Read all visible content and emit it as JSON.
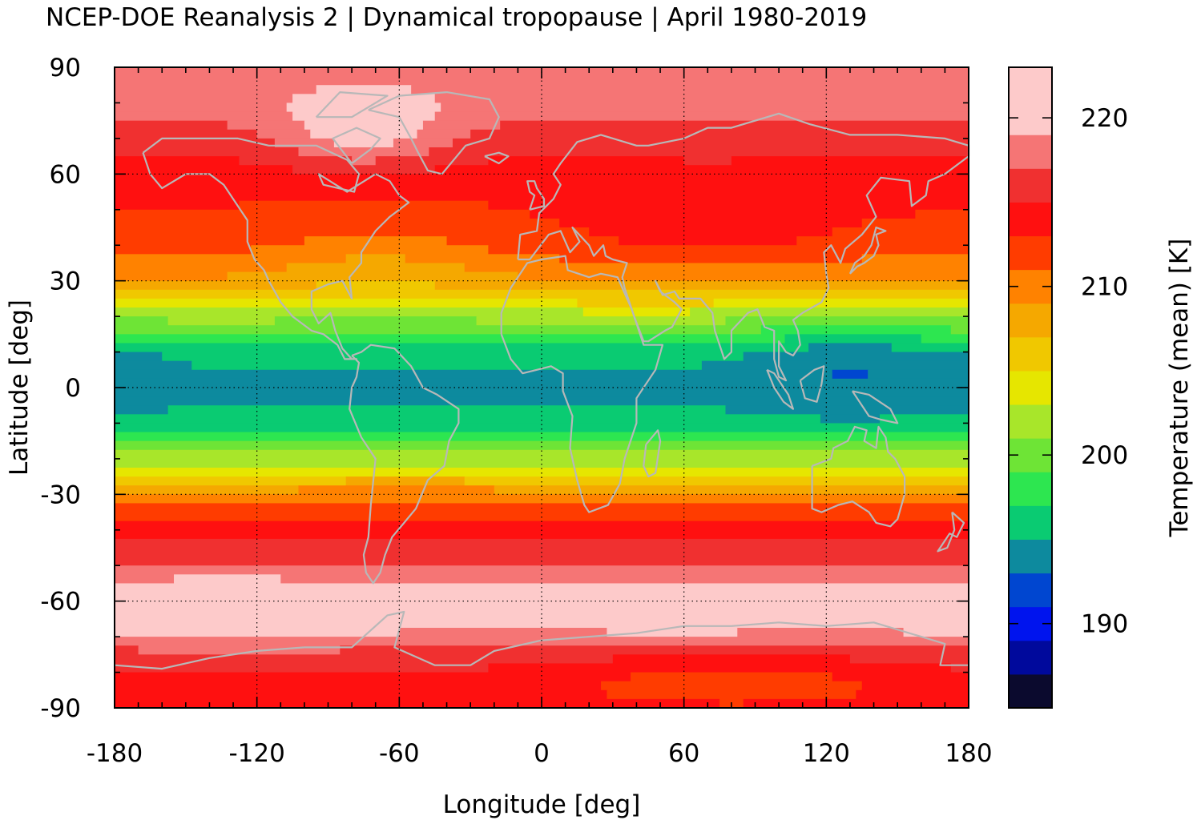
{
  "chart_data": {
    "type": "heatmap",
    "title": "NCEP-DOE Reanalysis 2 | Dynamical tropopause | April 1980-2019",
    "xlabel": "Longitude [deg]",
    "ylabel": "Latitude [deg]",
    "colorbar_label": "Temperature (mean) [K]",
    "xlim": [
      -180,
      180
    ],
    "ylim": [
      -90,
      90
    ],
    "xticks": [
      -180,
      -120,
      -60,
      0,
      60,
      120,
      180
    ],
    "yticks": [
      90,
      60,
      30,
      0,
      -30,
      -60,
      -90
    ],
    "x_tick_labels": [
      "-180",
      "-120",
      "-60",
      "0",
      "60",
      "120",
      "180"
    ],
    "y_tick_labels": [
      "90",
      "60",
      "30",
      "0",
      "-30",
      "-60",
      "-90"
    ],
    "colorbar_range": [
      185,
      223
    ],
    "colorbar_ticks": [
      190,
      200,
      210,
      220
    ],
    "colorbar_tick_labels": [
      "190",
      "200",
      "210",
      "220"
    ],
    "grid": true,
    "coastlines": true,
    "coastline_color": "#b8b8b8",
    "levels": [
      {
        "min": 185,
        "max": 187,
        "color": "#0b0a2e"
      },
      {
        "min": 187,
        "max": 189,
        "color": "#00099c"
      },
      {
        "min": 189,
        "max": 191,
        "color": "#0014ee"
      },
      {
        "min": 191,
        "max": 193,
        "color": "#0046d0"
      },
      {
        "min": 193,
        "max": 195,
        "color": "#0d8a9e"
      },
      {
        "min": 195,
        "max": 197,
        "color": "#0acb72"
      },
      {
        "min": 197,
        "max": 199,
        "color": "#2de650"
      },
      {
        "min": 199,
        "max": 201,
        "color": "#6ee436"
      },
      {
        "min": 201,
        "max": 203,
        "color": "#a8e62a"
      },
      {
        "min": 203,
        "max": 205,
        "color": "#e6e600"
      },
      {
        "min": 205,
        "max": 207,
        "color": "#f0c800"
      },
      {
        "min": 207,
        "max": 209,
        "color": "#f5a800"
      },
      {
        "min": 209,
        "max": 211,
        "color": "#ff8200"
      },
      {
        "min": 211,
        "max": 213,
        "color": "#ff3c00"
      },
      {
        "min": 213,
        "max": 215,
        "color": "#ff1010"
      },
      {
        "min": 215,
        "max": 217,
        "color": "#f03030"
      },
      {
        "min": 217,
        "max": 219,
        "color": "#f57575"
      },
      {
        "min": 219,
        "max": 223,
        "color": "#fdcaca"
      }
    ],
    "zonal_profile_lat": [
      90,
      80,
      70,
      60,
      50,
      40,
      30,
      25,
      20,
      15,
      10,
      5,
      0,
      -5,
      -10,
      -15,
      -20,
      -25,
      -30,
      -40,
      -50,
      -55,
      -60,
      -65,
      -70,
      -75,
      -80,
      -85,
      -90
    ],
    "zonal_profile_temp": [
      218,
      218,
      216,
      214,
      213,
      212,
      209,
      206,
      202,
      199,
      196,
      195,
      195,
      195,
      196,
      199,
      202,
      206,
      210,
      214,
      217,
      219,
      220,
      220,
      218,
      216,
      215,
      214,
      214
    ]
  }
}
